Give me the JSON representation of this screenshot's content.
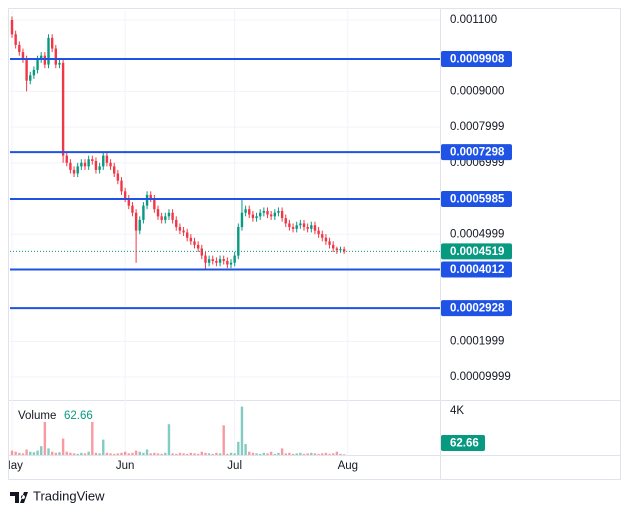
{
  "chart_data": {
    "type": "candlestick",
    "open": [
      0.0011,
      0.00106,
      0.00103,
      0.00101,
      0.00099,
      0.00093,
      0.000945,
      0.00096,
      0.00099,
      0.001,
      0.000975,
      0.00105,
      0.00102,
      0.000975,
      0.00098,
      0.00072,
      0.0007,
      0.00068,
      0.00067,
      0.00069,
      0.0007,
      0.00069,
      0.00071,
      0.000705,
      0.00068,
      0.00069,
      0.00072,
      0.0007,
      0.00069,
      0.00067,
      0.00065,
      0.00062,
      0.0006,
      0.00058,
      0.00056,
      0.00051,
      0.00054,
      0.00058,
      0.00061,
      0.0006,
      0.00057,
      0.00055,
      0.00054,
      0.00055,
      0.00056,
      0.00054,
      0.00052,
      0.00051,
      0.000505,
      0.00049,
      0.00048,
      0.00047,
      0.00046,
      0.00044,
      0.00042,
      0.00043,
      0.000425,
      0.00042,
      0.00043,
      0.000425,
      0.000415,
      0.00042,
      0.00044,
      0.00052,
      0.00056,
      0.00057,
      0.000555,
      0.000545,
      0.00055,
      0.00056,
      0.000565,
      0.000555,
      0.00055,
      0.00056,
      0.000565,
      0.000545,
      0.00053,
      0.00052,
      0.000515,
      0.000525,
      0.00053,
      0.00052,
      0.000515,
      0.000525,
      0.00051,
      0.0005,
      0.00049,
      0.00048,
      0.00047,
      0.00046,
      0.000455,
      0.000458
    ],
    "high": [
      0.00111,
      0.00107,
      0.00104,
      0.00102,
      0.001,
      0.000955,
      0.00097,
      0.001,
      0.00101,
      0.00101,
      0.00106,
      0.00106,
      0.00103,
      0.00099,
      0.00099,
      0.00073,
      0.00071,
      0.00069,
      0.0007,
      0.00071,
      0.00071,
      0.00072,
      0.00072,
      0.000715,
      0.0007,
      0.00073,
      0.00073,
      0.00071,
      0.0007,
      0.00068,
      0.00066,
      0.00063,
      0.00061,
      0.00059,
      0.00057,
      0.00055,
      0.00059,
      0.00062,
      0.00062,
      0.00061,
      0.00058,
      0.00056,
      0.00056,
      0.00057,
      0.00057,
      0.00055,
      0.00053,
      0.00052,
      0.000515,
      0.0005,
      0.00049,
      0.00048,
      0.00047,
      0.00045,
      0.00044,
      0.00044,
      0.000435,
      0.00044,
      0.00044,
      0.000435,
      0.00043,
      0.00045,
      0.00053,
      0.0006,
      0.00058,
      0.00058,
      0.000565,
      0.00056,
      0.00057,
      0.000575,
      0.000575,
      0.000565,
      0.00057,
      0.000575,
      0.000575,
      0.000555,
      0.00054,
      0.00053,
      0.000535,
      0.00054,
      0.00054,
      0.00053,
      0.000535,
      0.000535,
      0.00052,
      0.00051,
      0.0005,
      0.00049,
      0.00048,
      0.000465,
      0.000465,
      0.000465
    ],
    "low": [
      0.00105,
      0.00102,
      0.001,
      0.00098,
      0.0009,
      0.00092,
      0.000935,
      0.00095,
      0.00098,
      0.000965,
      0.000965,
      0.00101,
      0.000965,
      0.000965,
      0.0007,
      0.00069,
      0.00067,
      0.00066,
      0.00066,
      0.00068,
      0.00068,
      0.00068,
      0.000695,
      0.00067,
      0.00067,
      0.00068,
      0.00069,
      0.00068,
      0.00066,
      0.00064,
      0.00061,
      0.00059,
      0.00057,
      0.00055,
      0.00042,
      0.0005,
      0.00053,
      0.00057,
      0.00059,
      0.00056,
      0.00054,
      0.00053,
      0.00053,
      0.00054,
      0.00053,
      0.00051,
      0.0005,
      0.000495,
      0.00048,
      0.00047,
      0.00046,
      0.00045,
      0.00043,
      0.0004,
      0.00041,
      0.000415,
      0.00041,
      0.00041,
      0.000415,
      0.000405,
      0.000405,
      0.00041,
      0.00043,
      0.00051,
      0.00055,
      0.000545,
      0.000535,
      0.000535,
      0.00054,
      0.00055,
      0.000545,
      0.00054,
      0.00054,
      0.00055,
      0.000535,
      0.00052,
      0.00051,
      0.000505,
      0.000505,
      0.000515,
      0.00051,
      0.000505,
      0.000505,
      0.0005,
      0.00049,
      0.00048,
      0.00047,
      0.00046,
      0.00045,
      0.000445,
      0.000448,
      0.000445
    ],
    "close": [
      0.00106,
      0.00103,
      0.00101,
      0.00099,
      0.00093,
      0.000945,
      0.00096,
      0.00099,
      0.001,
      0.000975,
      0.00105,
      0.00102,
      0.000975,
      0.00098,
      0.00072,
      0.0007,
      0.00068,
      0.00067,
      0.00069,
      0.0007,
      0.00069,
      0.00071,
      0.000705,
      0.00068,
      0.00069,
      0.00072,
      0.0007,
      0.00069,
      0.00067,
      0.00065,
      0.00062,
      0.0006,
      0.00058,
      0.00056,
      0.00051,
      0.00054,
      0.00058,
      0.00061,
      0.0006,
      0.00057,
      0.00055,
      0.00054,
      0.00055,
      0.00056,
      0.00054,
      0.00052,
      0.00051,
      0.000505,
      0.00049,
      0.00048,
      0.00047,
      0.00046,
      0.00044,
      0.00042,
      0.00043,
      0.000425,
      0.00042,
      0.00043,
      0.000425,
      0.000415,
      0.00042,
      0.00044,
      0.00052,
      0.00056,
      0.00057,
      0.000555,
      0.000545,
      0.00055,
      0.00056,
      0.000565,
      0.000555,
      0.00055,
      0.00056,
      0.000565,
      0.000545,
      0.00053,
      0.00052,
      0.000515,
      0.000525,
      0.00053,
      0.00052,
      0.000515,
      0.000525,
      0.00051,
      0.0005,
      0.00049,
      0.00048,
      0.00047,
      0.00046,
      0.000455,
      0.000458,
      0.0004519
    ],
    "up_color": "#089981",
    "down_color": "#f23645",
    "xlim": [
      -0.55,
      117.26
    ],
    "xticks": [
      {
        "value": 0,
        "label": "May"
      },
      {
        "value": 31,
        "label": "Jun"
      },
      {
        "value": 61,
        "label": "Jul"
      },
      {
        "value": 92,
        "label": "Aug"
      }
    ],
    "ylim": [
      3.55e-05,
      0.001128
    ],
    "yticks": [
      {
        "value": 0.0011,
        "label": "0.001100"
      },
      {
        "value": 0.0009,
        "label": "0.0009000"
      },
      0.0007999,
      0.0006999,
      0.0004999,
      0.0001999,
      9.999e-05
    ],
    "grid": true,
    "price_lines": {
      "values": [
        0.0009908,
        0.0007298,
        0.0005985,
        0.0004012,
        0.0002928
      ],
      "color": "#1e53e5"
    },
    "last_price": 0.0004519,
    "volume": {
      "name": "Volume",
      "values": [
        400,
        300,
        200,
        150,
        500,
        300,
        250,
        400,
        800,
        3000,
        600,
        300,
        200,
        250,
        1500,
        300,
        200,
        150,
        100,
        200,
        150,
        300,
        3000,
        200,
        150,
        1400,
        200,
        150,
        100,
        150,
        200,
        300,
        150,
        200,
        400,
        300,
        200,
        500,
        150,
        200,
        150,
        100,
        200,
        2800,
        150,
        100,
        200,
        150,
        100,
        200,
        150,
        100,
        300,
        200,
        150,
        100,
        200,
        150,
        2700,
        100,
        200,
        150,
        1200,
        4400,
        1000,
        300,
        200,
        150,
        100,
        200,
        150,
        300,
        100,
        200,
        600,
        150,
        200,
        100,
        150,
        200,
        100,
        150,
        200,
        150,
        100,
        150,
        200,
        100,
        150,
        300,
        100,
        62.66
      ],
      "ylim": [
        0,
        5000
      ],
      "yticks": [
        {
          "value": 4000,
          "label": "4K"
        }
      ]
    }
  },
  "footer": {
    "brand": "TradingView"
  }
}
